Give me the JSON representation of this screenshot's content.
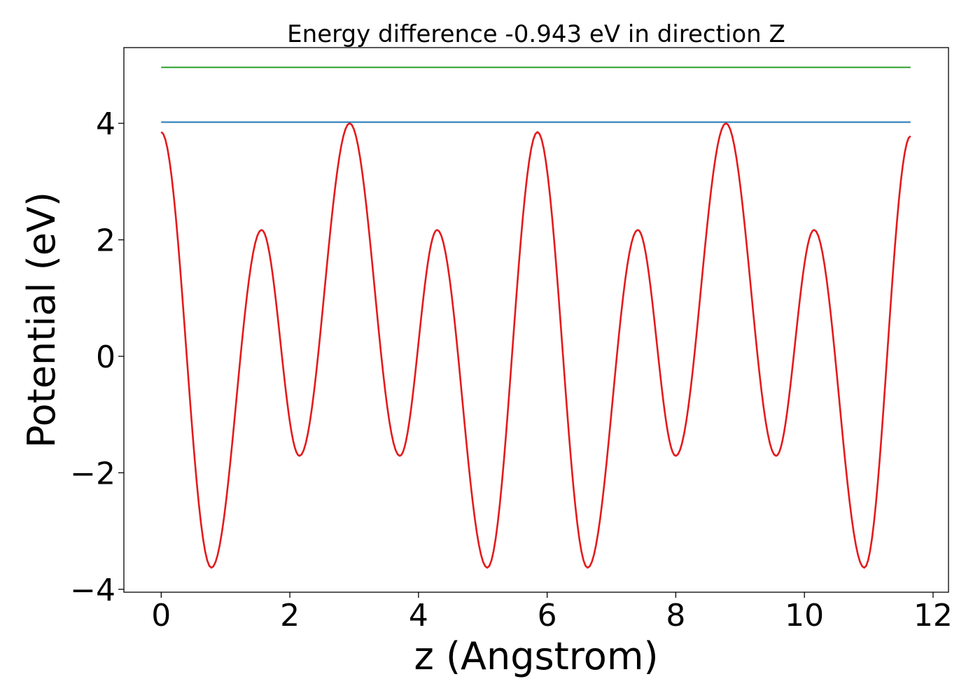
{
  "chart_data": {
    "type": "line",
    "title": "Energy difference -0.943 eV in direction Z",
    "xlabel": "z (Angstrom)",
    "ylabel": "Potential (eV)",
    "xlim": [
      -0.58,
      12.24
    ],
    "ylim": [
      -4.05,
      5.3
    ],
    "x_ticks": [
      0,
      2,
      4,
      6,
      8,
      10,
      12
    ],
    "x_tick_labels": [
      "0",
      "2",
      "4",
      "6",
      "8",
      "10",
      "12"
    ],
    "y_ticks": [
      -4,
      -2,
      0,
      2,
      4
    ],
    "y_tick_labels": [
      "−4",
      "−2",
      "0",
      "2",
      "4"
    ],
    "grid": false,
    "legend": "none",
    "series": [
      {
        "color": "#2ca02c",
        "style": "flat",
        "x": [
          0,
          11.65
        ],
        "y": [
          4.96,
          4.96
        ]
      },
      {
        "color": "#1f77b4",
        "style": "flat",
        "x": [
          0,
          11.65
        ],
        "y": [
          4.02,
          4.02
        ]
      },
      {
        "color": "#e41a1c",
        "style": "curve",
        "x": [
          0,
          0.78,
          1.56,
          2.15,
          2.93,
          3.71,
          4.29,
          5.07,
          5.85,
          6.63,
          7.41,
          8.0,
          8.78,
          9.56,
          10.15,
          10.93,
          11.65
        ],
        "y": [
          3.85,
          -3.63,
          2.17,
          -1.71,
          4.0,
          -1.71,
          2.17,
          -3.63,
          3.85,
          -3.63,
          2.17,
          -1.71,
          4.0,
          -1.71,
          2.17,
          -3.63,
          3.78
        ]
      }
    ]
  }
}
